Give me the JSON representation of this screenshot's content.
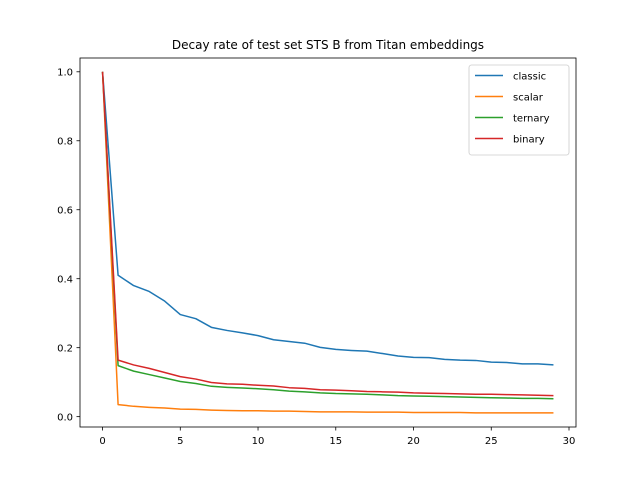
{
  "chart_data": {
    "type": "line",
    "title": "Decay rate of test set STS B from Titan embeddings",
    "xlabel": "",
    "ylabel": "",
    "xlim": [
      -1.45,
      30.45
    ],
    "ylim": [
      -0.03,
      1.04
    ],
    "x_ticks": [
      0,
      5,
      10,
      15,
      20,
      25,
      30
    ],
    "y_ticks": [
      0.0,
      0.2,
      0.4,
      0.6,
      0.8,
      1.0
    ],
    "x_tick_labels": [
      "0",
      "5",
      "10",
      "15",
      "20",
      "25",
      "30"
    ],
    "y_tick_labels": [
      "0.0",
      "0.2",
      "0.4",
      "0.6",
      "0.8",
      "1.0"
    ],
    "grid": false,
    "legend_position": "top-right",
    "x": [
      0,
      1,
      2,
      3,
      4,
      5,
      6,
      7,
      8,
      9,
      10,
      11,
      12,
      13,
      14,
      15,
      16,
      17,
      18,
      19,
      20,
      21,
      22,
      23,
      24,
      25,
      26,
      27,
      28,
      29
    ],
    "series": [
      {
        "name": "classic",
        "color": "#1f77b4",
        "values": [
          1.0,
          0.41,
          0.38,
          0.363,
          0.335,
          0.296,
          0.284,
          0.259,
          0.25,
          0.243,
          0.235,
          0.223,
          0.218,
          0.213,
          0.201,
          0.195,
          0.192,
          0.19,
          0.183,
          0.176,
          0.172,
          0.171,
          0.166,
          0.164,
          0.163,
          0.158,
          0.157,
          0.153,
          0.153,
          0.15
        ]
      },
      {
        "name": "scalar",
        "color": "#ff7f0e",
        "values": [
          1.0,
          0.035,
          0.03,
          0.027,
          0.025,
          0.022,
          0.021,
          0.019,
          0.018,
          0.017,
          0.017,
          0.016,
          0.016,
          0.015,
          0.014,
          0.014,
          0.014,
          0.013,
          0.013,
          0.013,
          0.012,
          0.012,
          0.012,
          0.012,
          0.011,
          0.011,
          0.011,
          0.011,
          0.011,
          0.011
        ]
      },
      {
        "name": "ternary",
        "color": "#2ca02c",
        "values": [
          1.0,
          0.148,
          0.132,
          0.122,
          0.112,
          0.102,
          0.096,
          0.088,
          0.085,
          0.083,
          0.081,
          0.078,
          0.074,
          0.072,
          0.069,
          0.067,
          0.066,
          0.065,
          0.063,
          0.061,
          0.06,
          0.059,
          0.058,
          0.057,
          0.056,
          0.055,
          0.054,
          0.053,
          0.053,
          0.052
        ]
      },
      {
        "name": "binary",
        "color": "#d62728",
        "values": [
          1.0,
          0.164,
          0.15,
          0.14,
          0.128,
          0.116,
          0.109,
          0.099,
          0.095,
          0.094,
          0.091,
          0.089,
          0.084,
          0.082,
          0.078,
          0.077,
          0.075,
          0.073,
          0.072,
          0.071,
          0.069,
          0.068,
          0.067,
          0.066,
          0.065,
          0.065,
          0.064,
          0.063,
          0.062,
          0.061
        ]
      }
    ]
  }
}
